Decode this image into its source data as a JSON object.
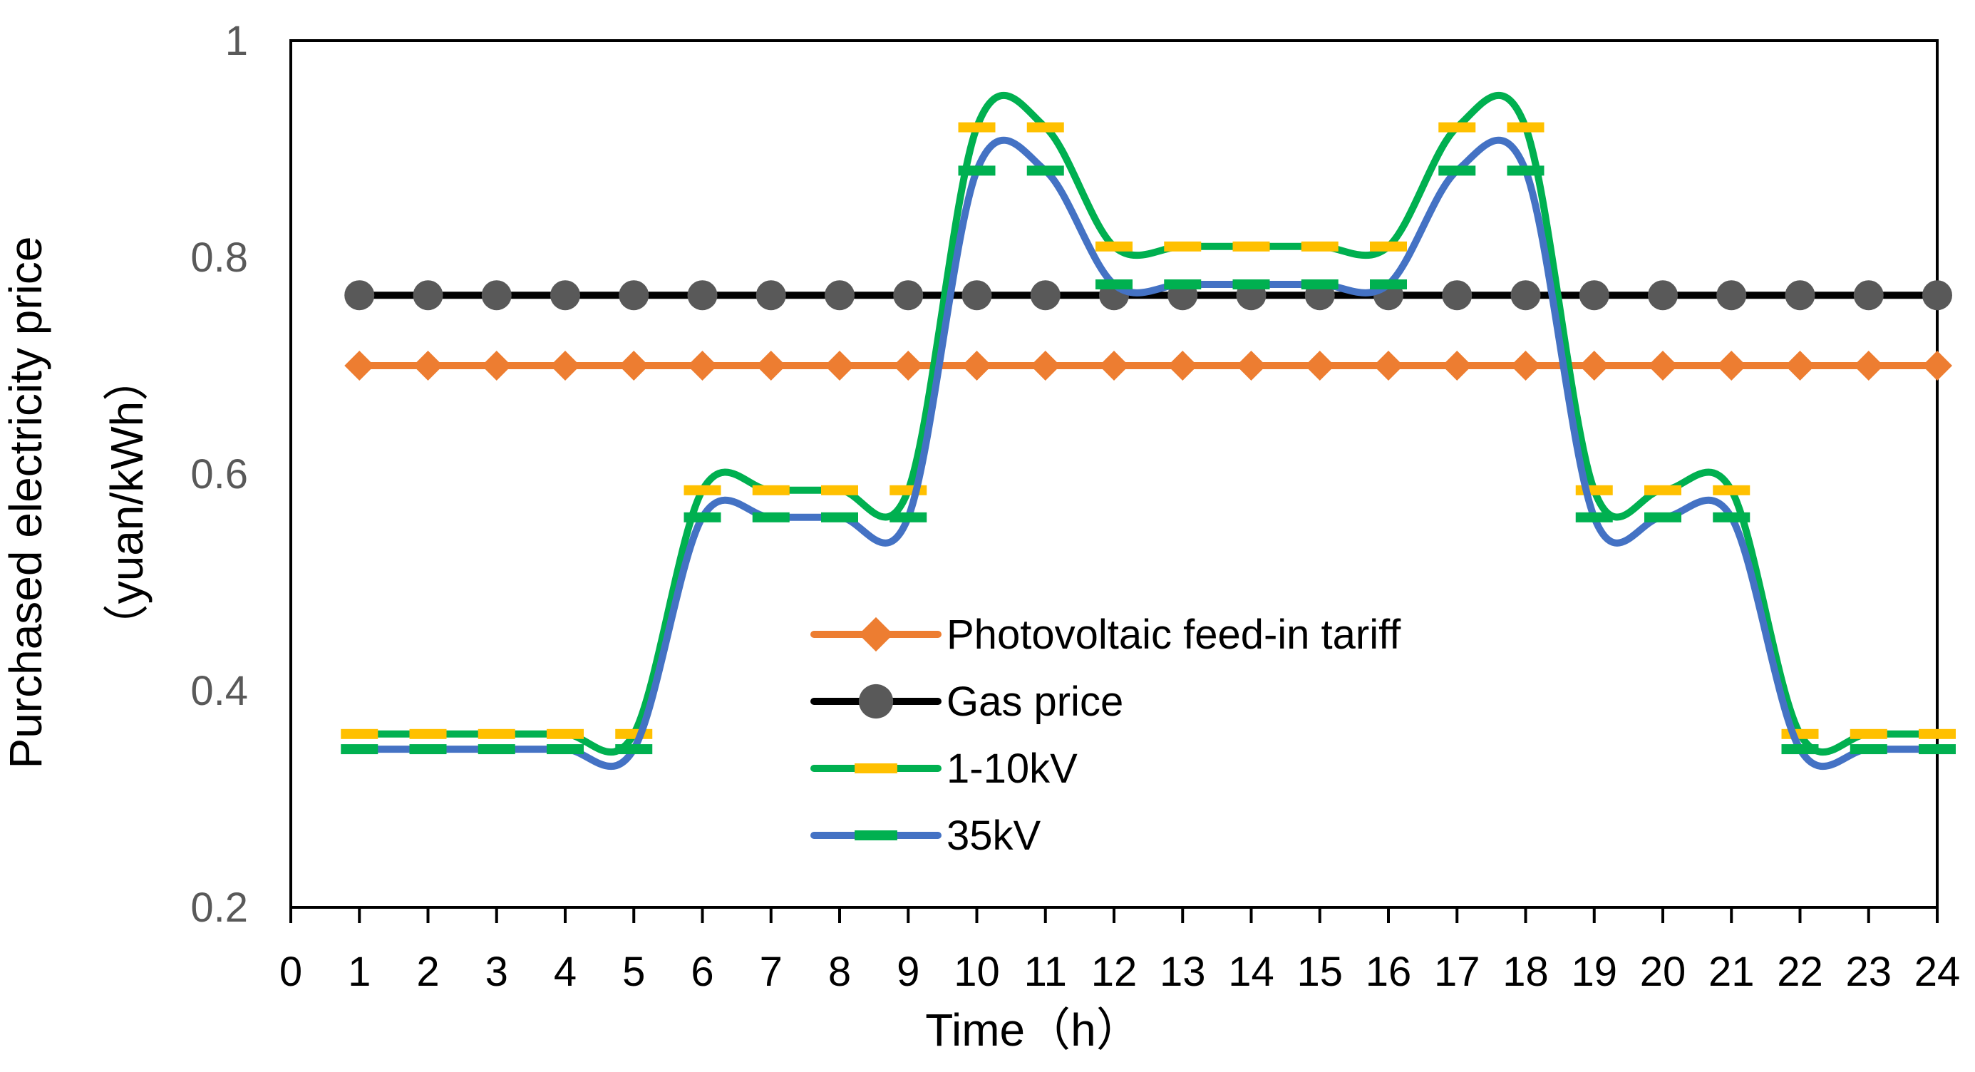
{
  "chart_data": {
    "type": "line",
    "title": "",
    "xlabel": "Time（h）",
    "ylabel": "Purchased electricity  price",
    "ylabel_unit": "（yuan/kWh）",
    "xlim": [
      0,
      24
    ],
    "ylim": [
      0.2,
      1.0
    ],
    "x_ticks": [
      0,
      1,
      2,
      3,
      4,
      5,
      6,
      7,
      8,
      9,
      10,
      11,
      12,
      13,
      14,
      15,
      16,
      17,
      18,
      19,
      20,
      21,
      22,
      23,
      24
    ],
    "y_ticks": [
      0.2,
      0.4,
      0.6,
      0.8,
      1
    ],
    "y_tick_labels": [
      "0.2",
      "0.4",
      "0.6",
      "0.8",
      "1"
    ],
    "grid": false,
    "legend_position": "center",
    "x": [
      1,
      2,
      3,
      4,
      5,
      6,
      7,
      8,
      9,
      10,
      11,
      12,
      13,
      14,
      15,
      16,
      17,
      18,
      19,
      20,
      21,
      22,
      23,
      24
    ],
    "series": [
      {
        "name": "Photovoltaic feed-in tariff",
        "color": "#ED7D31",
        "marker": "diamond",
        "style": "line-marker",
        "values": [
          0.7,
          0.7,
          0.7,
          0.7,
          0.7,
          0.7,
          0.7,
          0.7,
          0.7,
          0.7,
          0.7,
          0.7,
          0.7,
          0.7,
          0.7,
          0.7,
          0.7,
          0.7,
          0.7,
          0.7,
          0.7,
          0.7,
          0.7,
          0.7
        ]
      },
      {
        "name": "Gas price",
        "color": "#000000",
        "marker_color": "#595959",
        "marker": "circle",
        "style": "line-marker",
        "values": [
          0.765,
          0.765,
          0.765,
          0.765,
          0.765,
          0.765,
          0.765,
          0.765,
          0.765,
          0.765,
          0.765,
          0.765,
          0.765,
          0.765,
          0.765,
          0.765,
          0.765,
          0.765,
          0.765,
          0.765,
          0.765,
          0.765,
          0.765,
          0.765
        ]
      },
      {
        "name": "1-10kV",
        "color": "#00B050",
        "marker_color": "#FFC000",
        "marker": "dash",
        "style": "smooth-line-marker",
        "values": [
          0.36,
          0.36,
          0.36,
          0.36,
          0.36,
          0.585,
          0.585,
          0.585,
          0.585,
          0.92,
          0.92,
          0.81,
          0.81,
          0.81,
          0.81,
          0.81,
          0.92,
          0.92,
          0.585,
          0.585,
          0.585,
          0.36,
          0.36,
          0.36
        ]
      },
      {
        "name": "35kV",
        "color": "#4472C4",
        "marker_color": "#00B050",
        "marker": "dash",
        "style": "smooth-line-marker",
        "values": [
          0.346,
          0.346,
          0.346,
          0.346,
          0.346,
          0.56,
          0.56,
          0.56,
          0.56,
          0.88,
          0.88,
          0.775,
          0.775,
          0.775,
          0.775,
          0.775,
          0.88,
          0.88,
          0.56,
          0.56,
          0.56,
          0.346,
          0.346,
          0.346
        ]
      }
    ]
  }
}
